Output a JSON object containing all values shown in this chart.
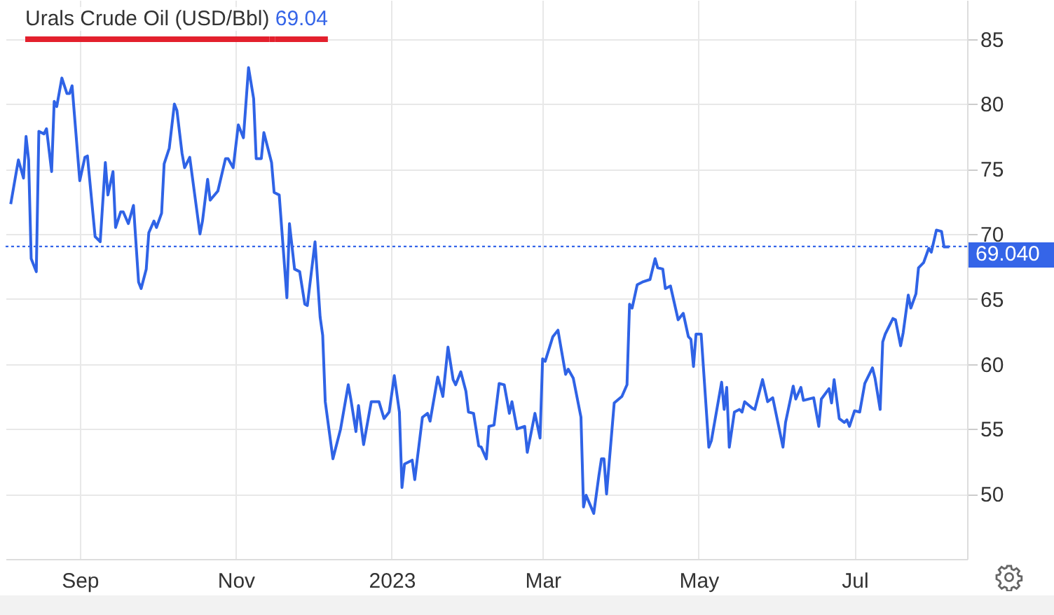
{
  "chart_data": {
    "type": "line",
    "title": "Urals Crude Oil (USD/Bbl)",
    "annotations": [
      "69.04"
    ],
    "x": [
      "2022-08-05",
      "2022-08-08",
      "2022-08-10",
      "2022-08-11",
      "2022-08-12",
      "2022-08-13",
      "2022-08-15",
      "2022-08-16",
      "2022-08-18",
      "2022-08-19",
      "2022-08-21",
      "2022-08-22",
      "2022-08-23",
      "2022-08-25",
      "2022-08-27",
      "2022-08-28",
      "2022-08-29",
      "2022-09-01",
      "2022-09-03",
      "2022-09-04",
      "2022-09-07",
      "2022-09-09",
      "2022-09-11",
      "2022-09-12",
      "2022-09-14",
      "2022-09-15",
      "2022-09-17",
      "2022-09-18",
      "2022-09-20",
      "2022-09-22",
      "2022-09-24",
      "2022-09-25",
      "2022-09-27",
      "2022-09-28",
      "2022-09-30",
      "2022-10-01",
      "2022-10-03",
      "2022-10-04",
      "2022-10-06",
      "2022-10-08",
      "2022-10-09",
      "2022-10-11",
      "2022-10-12",
      "2022-10-14",
      "2022-10-18",
      "2022-10-19",
      "2022-10-21",
      "2022-10-22",
      "2022-10-25",
      "2022-10-28",
      "2022-10-29",
      "2022-10-31",
      "2022-11-02",
      "2022-11-04",
      "2022-11-06",
      "2022-11-08",
      "2022-11-09",
      "2022-11-11",
      "2022-11-12",
      "2022-11-15",
      "2022-11-16",
      "2022-11-18",
      "2022-11-21",
      "2022-11-22",
      "2022-11-24",
      "2022-11-26",
      "2022-11-28",
      "2022-11-29",
      "2022-12-02",
      "2022-12-04",
      "2022-12-05",
      "2022-12-06",
      "2022-12-09",
      "2022-12-12",
      "2022-12-15",
      "2022-12-16",
      "2022-12-18",
      "2022-12-19",
      "2022-12-21",
      "2022-12-24",
      "2022-12-27",
      "2022-12-29",
      "2022-12-31",
      "2023-01-02",
      "2023-01-04",
      "2023-01-05",
      "2023-01-06",
      "2023-01-09",
      "2023-01-10",
      "2023-01-13",
      "2023-01-15",
      "2023-01-16",
      "2023-01-19",
      "2023-01-21",
      "2023-01-23",
      "2023-01-25",
      "2023-01-26",
      "2023-01-28",
      "2023-01-30",
      "2023-01-31",
      "2023-02-02",
      "2023-02-04",
      "2023-02-05",
      "2023-02-07",
      "2023-02-08",
      "2023-02-10",
      "2023-02-12",
      "2023-02-14",
      "2023-02-16",
      "2023-02-17",
      "2023-02-19",
      "2023-02-22",
      "2023-02-23",
      "2023-02-26",
      "2023-02-28",
      "2023-03-01",
      "2023-03-02",
      "2023-03-05",
      "2023-03-07",
      "2023-03-10",
      "2023-03-11",
      "2023-03-13",
      "2023-03-16",
      "2023-03-17",
      "2023-03-18",
      "2023-03-21",
      "2023-03-23",
      "2023-03-24",
      "2023-03-25",
      "2023-03-26",
      "2023-03-29",
      "2023-04-01",
      "2023-04-03",
      "2023-04-04",
      "2023-04-05",
      "2023-04-07",
      "2023-04-09",
      "2023-04-12",
      "2023-04-14",
      "2023-04-15",
      "2023-04-17",
      "2023-04-18",
      "2023-04-20",
      "2023-04-23",
      "2023-04-25",
      "2023-04-27",
      "2023-04-28",
      "2023-04-29",
      "2023-04-30",
      "2023-05-02",
      "2023-05-05",
      "2023-05-06",
      "2023-05-10",
      "2023-05-11",
      "2023-05-12",
      "2023-05-13",
      "2023-05-15",
      "2023-05-17",
      "2023-05-18",
      "2023-05-19",
      "2023-05-22",
      "2023-05-23",
      "2023-05-26",
      "2023-05-28",
      "2023-05-30",
      "2023-06-03",
      "2023-06-04",
      "2023-06-07",
      "2023-06-08",
      "2023-06-10",
      "2023-06-11",
      "2023-06-15",
      "2023-06-17",
      "2023-06-18",
      "2023-06-21",
      "2023-06-22",
      "2023-06-23",
      "2023-06-25",
      "2023-06-27",
      "2023-06-28",
      "2023-06-29",
      "2023-07-01",
      "2023-07-03",
      "2023-07-05",
      "2023-07-08",
      "2023-07-09",
      "2023-07-11",
      "2023-07-12",
      "2023-07-13",
      "2023-07-16",
      "2023-07-17",
      "2023-07-19",
      "2023-07-20",
      "2023-07-22",
      "2023-07-23",
      "2023-07-25",
      "2023-07-26",
      "2023-07-28",
      "2023-07-30",
      "2023-07-31",
      "2023-08-02",
      "2023-08-04",
      "2023-08-05",
      "2023-08-07"
    ],
    "series": [
      {
        "color": "#2f63e6",
        "values": [
          72.3,
          75.7,
          74.3,
          77.5,
          75.7,
          68.1,
          67.1,
          77.9,
          77.7,
          78.1,
          74.8,
          80.2,
          79.8,
          82.0,
          80.8,
          80.8,
          81.4,
          74.1,
          75.9,
          76.0,
          69.8,
          69.4,
          75.5,
          73.0,
          74.8,
          70.5,
          71.7,
          71.7,
          70.8,
          72.2,
          66.3,
          65.8,
          67.3,
          70.1,
          71.0,
          70.5,
          71.6,
          75.4,
          76.6,
          80.0,
          79.5,
          76.2,
          75.1,
          75.9,
          70.0,
          71.0,
          74.2,
          72.6,
          73.3,
          75.8,
          75.8,
          75.1,
          78.4,
          77.4,
          82.8,
          80.4,
          75.8,
          75.8,
          77.8,
          75.5,
          73.2,
          73.0,
          65.1,
          70.8,
          67.3,
          67.1,
          64.6,
          64.5,
          69.4,
          63.6,
          62.2,
          57.1,
          52.7,
          55.0,
          58.4,
          57.3,
          54.8,
          56.8,
          53.8,
          57.1,
          57.1,
          55.8,
          56.3,
          59.1,
          56.3,
          50.5,
          52.3,
          52.6,
          51.1,
          55.9,
          56.2,
          55.6,
          59.0,
          57.5,
          61.3,
          58.8,
          58.4,
          59.4,
          57.9,
          56.3,
          56.2,
          53.7,
          53.6,
          52.7,
          55.2,
          55.3,
          58.5,
          58.4,
          56.2,
          57.1,
          55.0,
          55.2,
          53.2,
          56.2,
          54.3,
          60.4,
          60.2,
          62.1,
          62.6,
          59.2,
          59.6,
          58.9,
          55.9,
          49.0,
          49.9,
          48.5,
          51.4,
          52.7,
          52.7,
          50.0,
          57.0,
          57.5,
          58.4,
          64.6,
          64.3,
          66.1,
          66.3,
          66.5,
          68.1,
          67.4,
          67.3,
          65.8,
          66.0,
          63.4,
          63.9,
          62.1,
          61.9,
          59.8,
          62.3,
          62.3,
          53.6,
          54.1,
          58.6,
          56.5,
          58.2,
          53.6,
          56.3,
          56.5,
          56.3,
          57.1,
          56.6,
          56.5,
          58.8,
          57.1,
          57.4,
          53.6,
          55.5,
          58.3,
          57.3,
          58.2,
          57.2,
          57.4,
          55.2,
          57.3,
          58.1,
          57.0,
          58.8,
          55.8,
          55.5,
          55.7,
          55.2,
          56.4,
          56.3,
          58.5,
          59.7,
          58.9,
          56.5,
          61.7,
          62.3,
          63.5,
          63.4,
          61.4,
          62.4,
          65.3,
          64.3,
          65.4,
          67.4,
          67.8,
          68.9,
          68.6,
          70.3,
          70.2,
          69.0,
          69.0
        ]
      }
    ],
    "xlim": [
      "2022-08-03",
      "2023-08-14"
    ],
    "xticks": [
      {
        "value": "2022-09-01",
        "label": "Sep"
      },
      {
        "value": "2022-11-01",
        "label": "Nov"
      },
      {
        "value": "2023-01-01",
        "label": "2023"
      },
      {
        "value": "2023-03-01",
        "label": "Mar"
      },
      {
        "value": "2023-05-01",
        "label": "May"
      },
      {
        "value": "2023-07-01",
        "label": "Jul"
      }
    ],
    "ylim": [
      45,
      88
    ],
    "yticks": [
      50,
      55,
      60,
      65,
      70,
      75,
      80,
      85
    ],
    "ref_lines": [
      {
        "axis": "y",
        "value": 69.04,
        "label": "69.040",
        "color": "#3565e8",
        "line_style": "dotted"
      }
    ],
    "grid": true,
    "marker": "none",
    "line_style": "solid"
  }
}
